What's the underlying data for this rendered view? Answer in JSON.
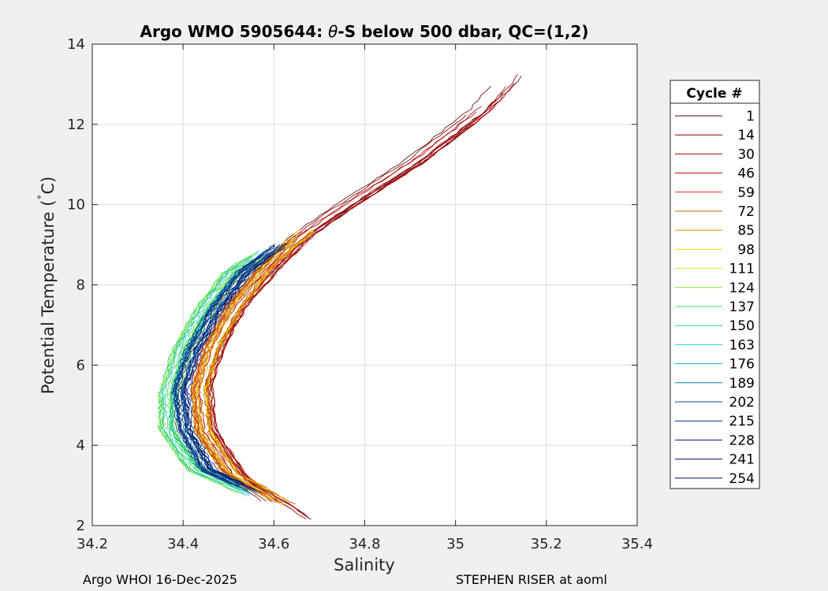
{
  "title_parts": {
    "prefix": "Argo WMO 5905644: ",
    "theta": "θ",
    "suffix": "-S below 500 dbar,  QC=(1,2)"
  },
  "footer": {
    "left": "Argo WHOI 16-Dec-2025",
    "right": "STEPHEN RISER at aoml"
  },
  "legend": {
    "title": "Cycle #",
    "items": [
      {
        "label": "1",
        "color": "#5c0000"
      },
      {
        "label": "14",
        "color": "#7a0000"
      },
      {
        "label": "30",
        "color": "#a30000"
      },
      {
        "label": "46",
        "color": "#c60000"
      },
      {
        "label": "59",
        "color": "#e03010"
      },
      {
        "label": "72",
        "color": "#c86a00"
      },
      {
        "label": "85",
        "color": "#d7a000"
      },
      {
        "label": "98",
        "color": "#eedd00"
      },
      {
        "label": "111",
        "color": "#c8ee20"
      },
      {
        "label": "124",
        "color": "#80e040"
      },
      {
        "label": "137",
        "color": "#40e060"
      },
      {
        "label": "150",
        "color": "#20d890"
      },
      {
        "label": "163",
        "color": "#20d0c0"
      },
      {
        "label": "176",
        "color": "#10a8c8"
      },
      {
        "label": "189",
        "color": "#0080b0"
      },
      {
        "label": "202",
        "color": "#0050a8"
      },
      {
        "label": "215",
        "color": "#002898"
      },
      {
        "label": "228",
        "color": "#001480"
      },
      {
        "label": "241",
        "color": "#000a60"
      },
      {
        "label": "254",
        "color": "#00084a"
      }
    ]
  },
  "chart_data": {
    "type": "line",
    "xlabel": "Salinity",
    "ylabel_parts": {
      "main": "Potential Temperature (",
      "degree": "˚",
      "unit": "C)"
    },
    "xlim": [
      34.2,
      35.4
    ],
    "ylim": [
      2,
      14
    ],
    "xticks": [
      "34.2",
      "34.4",
      "34.6",
      "34.8",
      "35",
      "35.2",
      "35.4"
    ],
    "yticks": [
      "2",
      "4",
      "6",
      "8",
      "10",
      "12",
      "14"
    ],
    "grid": true,
    "legend_position": "outside-right",
    "series_families": [
      {
        "name": "1-46",
        "colors": [
          "#5c0000",
          "#7a0000",
          "#a30000",
          "#c60000"
        ],
        "points": [
          [
            34.66,
            2.15
          ],
          [
            34.52,
            3.2
          ],
          [
            34.45,
            4.4
          ],
          [
            34.44,
            5.5
          ],
          [
            34.47,
            6.5
          ],
          [
            34.52,
            7.5
          ],
          [
            34.59,
            8.4
          ],
          [
            34.66,
            9.2
          ],
          [
            34.76,
            10.0
          ],
          [
            34.9,
            11.0
          ],
          [
            35.05,
            12.3
          ],
          [
            35.13,
            13.3
          ]
        ]
      },
      {
        "name": "59-98",
        "colors": [
          "#e03010",
          "#c86a00",
          "#d7a000",
          "#eedd00"
        ],
        "points": [
          [
            34.64,
            2.5
          ],
          [
            34.51,
            3.3
          ],
          [
            34.45,
            4.3
          ],
          [
            34.44,
            5.4
          ],
          [
            34.47,
            6.5
          ],
          [
            34.52,
            7.5
          ],
          [
            34.59,
            8.5
          ],
          [
            34.68,
            9.4
          ]
        ]
      },
      {
        "name": "111-176",
        "colors": [
          "#c8ee20",
          "#80e040",
          "#40e060",
          "#20d890",
          "#20d0c0",
          "#10a8c8"
        ],
        "points": [
          [
            34.56,
            2.7
          ],
          [
            34.43,
            3.4
          ],
          [
            34.37,
            4.4
          ],
          [
            34.37,
            5.3
          ],
          [
            34.4,
            6.4
          ],
          [
            34.45,
            7.4
          ],
          [
            34.51,
            8.3
          ],
          [
            34.59,
            8.9
          ]
        ]
      },
      {
        "name": "189-254",
        "colors": [
          "#0080b0",
          "#0050a8",
          "#002898",
          "#001480",
          "#000a60",
          "#00084a"
        ],
        "points": [
          [
            34.56,
            2.8
          ],
          [
            34.45,
            3.4
          ],
          [
            34.4,
            4.4
          ],
          [
            34.39,
            5.4
          ],
          [
            34.42,
            6.4
          ],
          [
            34.47,
            7.4
          ],
          [
            34.53,
            8.3
          ],
          [
            34.62,
            9.1
          ]
        ]
      }
    ]
  }
}
